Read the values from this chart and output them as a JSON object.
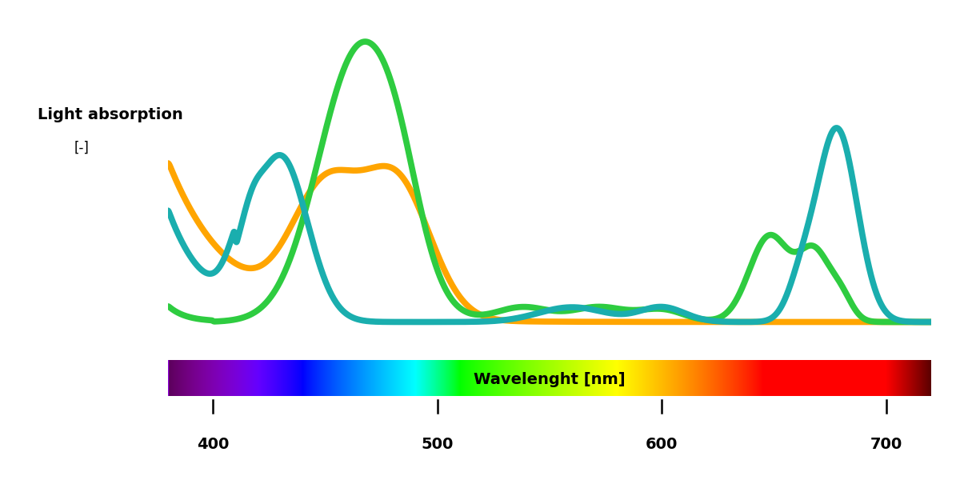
{
  "ylabel_line1": "Light absorption",
  "ylabel_line2": "[-]",
  "xlabel_label": "Wavelenght [nm]",
  "x_min": 380,
  "x_max": 720,
  "xticks": [
    400,
    500,
    600,
    700
  ],
  "background_color": "#ffffff",
  "teal_color": "#1AAEAE",
  "green_color": "#2ECC40",
  "orange_color": "#FFA500",
  "line_width": 5.5
}
